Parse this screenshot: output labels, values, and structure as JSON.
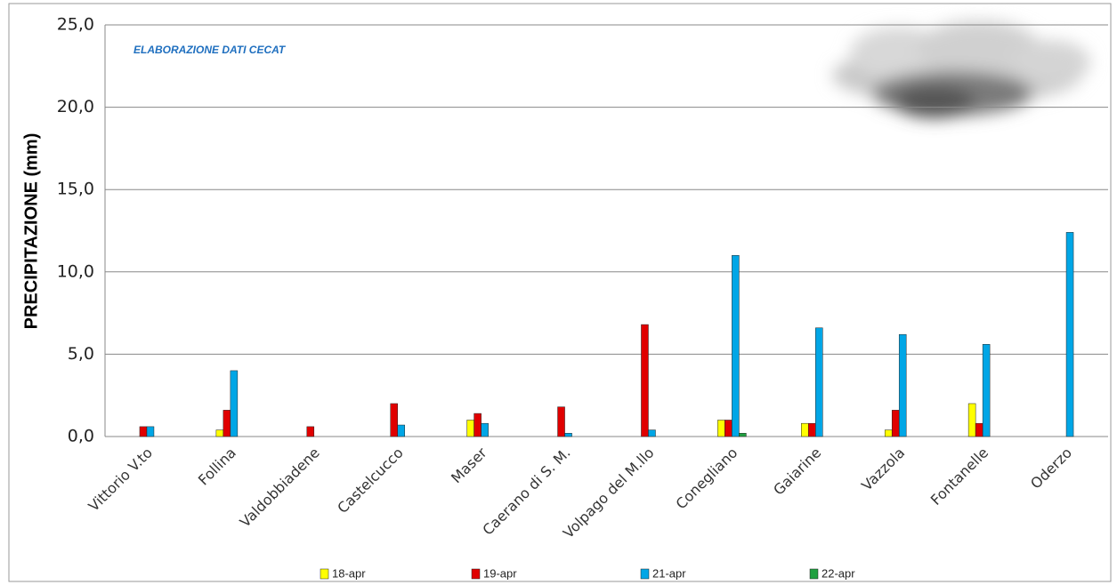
{
  "chart_data": {
    "type": "bar",
    "annotation": "ELABORAZIONE DATI CECAT",
    "y_label": "PRECIPITAZIONE (mm)",
    "categories": [
      "Vittorio V.to",
      "Follina",
      "Valdobbiadene",
      "Castelcucco",
      "Maser",
      "Caerano di S. M.",
      "Volpago del M.llo",
      "Conegliano",
      "Gaiarine",
      "Vazzola",
      "Fontanelle",
      "Oderzo"
    ],
    "series": [
      {
        "name": "18-apr",
        "color": "#ffff00",
        "values": [
          0,
          0.4,
          0,
          0,
          1.0,
          0,
          0,
          1.0,
          0.8,
          0.4,
          2.0,
          0
        ]
      },
      {
        "name": "19-apr",
        "color": "#e00000",
        "values": [
          0.6,
          1.6,
          0.6,
          2.0,
          1.4,
          1.8,
          6.8,
          1.0,
          0.8,
          1.6,
          0.8,
          0
        ]
      },
      {
        "name": "21-apr",
        "color": "#00a6e6",
        "values": [
          0.6,
          4.0,
          0,
          0.7,
          0.8,
          0.2,
          0.4,
          11.0,
          6.6,
          6.2,
          5.6,
          12.4
        ]
      },
      {
        "name": "22-apr",
        "color": "#20a040",
        "values": [
          0,
          0,
          0,
          0,
          0,
          0,
          0,
          0.2,
          0,
          0,
          0,
          0
        ]
      }
    ],
    "ylim": [
      0,
      25
    ],
    "yticks": [
      {
        "value": 0,
        "label": "0,0"
      },
      {
        "value": 5,
        "label": "5,0"
      },
      {
        "value": 10,
        "label": "10,0"
      },
      {
        "value": 15,
        "label": "15,0"
      },
      {
        "value": 20,
        "label": "20,0"
      },
      {
        "value": 25,
        "label": "25,0"
      }
    ],
    "grid": true
  }
}
